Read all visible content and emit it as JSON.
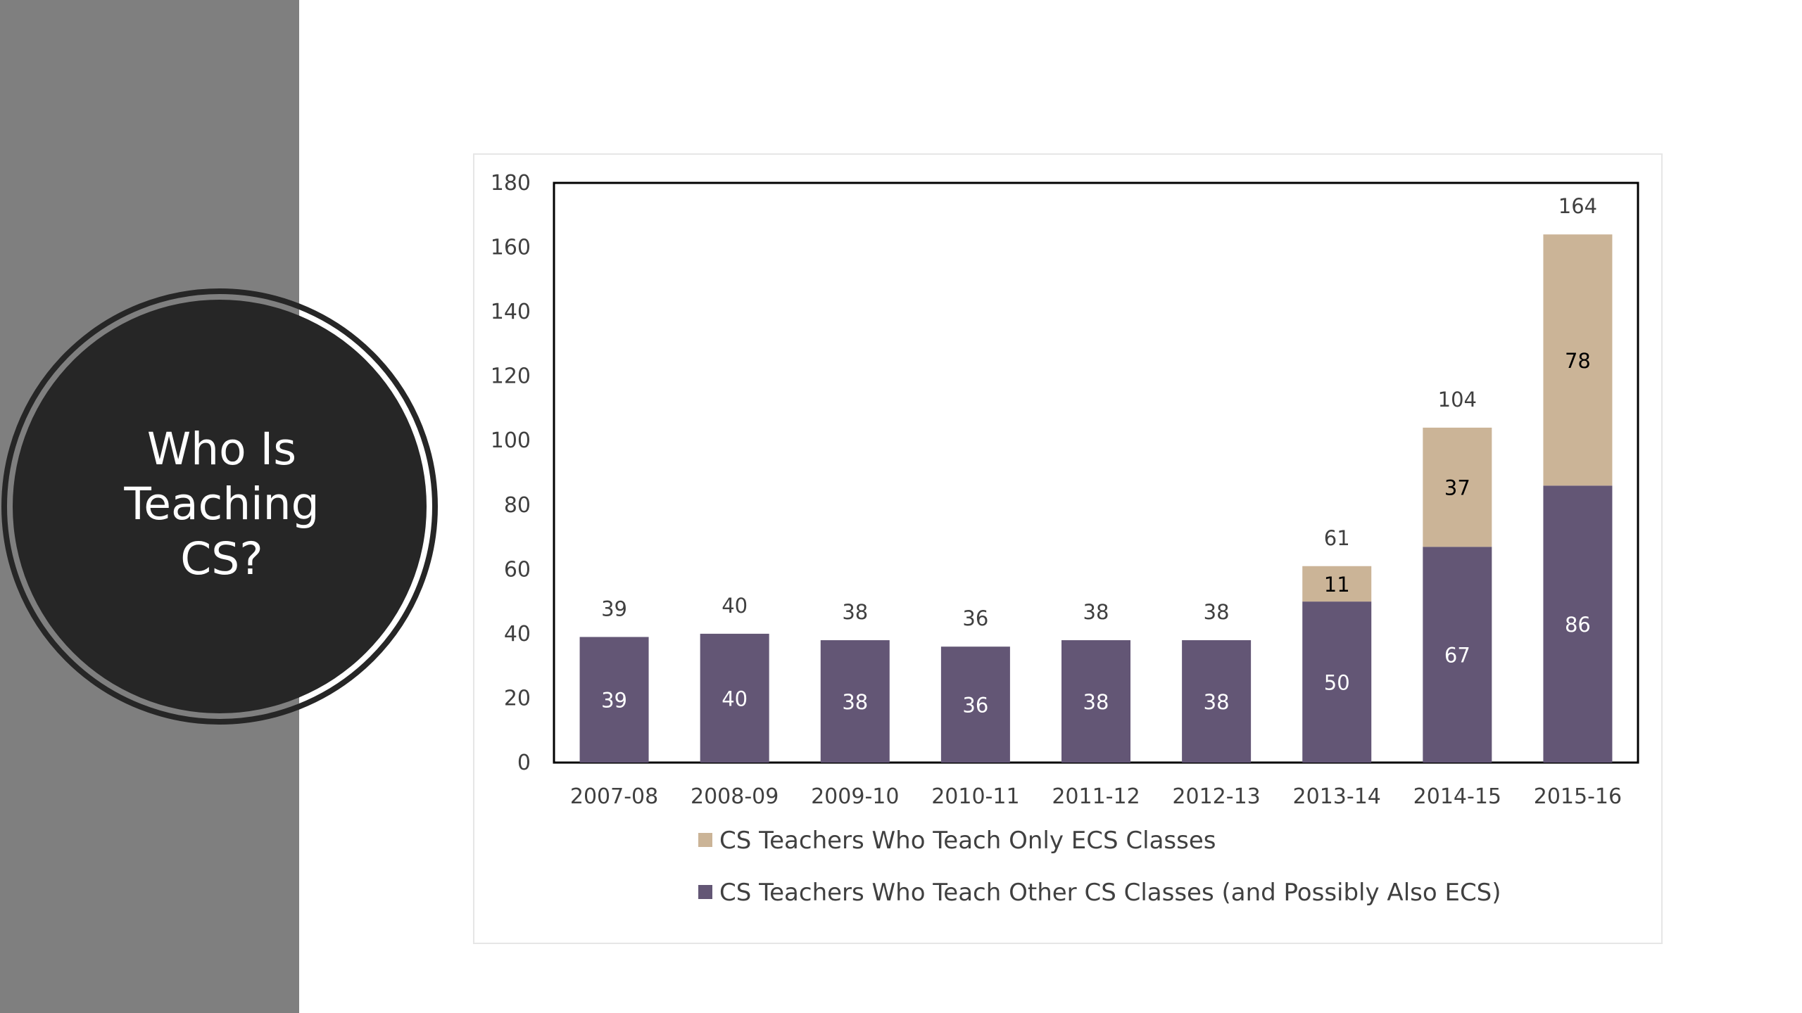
{
  "slide": {
    "title_lines": [
      "Who Is",
      "Teaching",
      "CS?"
    ],
    "panel_color": "#7f7f7f",
    "circle_color": "#262626"
  },
  "chart_data": {
    "type": "bar",
    "stacked": true,
    "title": "",
    "xlabel": "",
    "ylabel": "",
    "categories": [
      "2007-08",
      "2008-09",
      "2009-10",
      "2010-11",
      "2011-12",
      "2012-13",
      "2013-14",
      "2014-15",
      "2015-16"
    ],
    "series": [
      {
        "name": "CS Teachers Who Teach Other CS Classes (and Possibly Also ECS)",
        "color": "#635675",
        "label_color": "#ffffff",
        "values": [
          39,
          40,
          38,
          36,
          38,
          38,
          50,
          67,
          86
        ]
      },
      {
        "name": "CS Teachers Who Teach Only ECS Classes",
        "color": "#cbb497",
        "label_color": "#000000",
        "values": [
          0,
          0,
          0,
          0,
          0,
          0,
          11,
          37,
          78
        ]
      }
    ],
    "totals": [
      39,
      40,
      38,
      36,
      38,
      38,
      61,
      104,
      164
    ],
    "ylim": [
      0,
      180
    ],
    "yticks": [
      0,
      20,
      40,
      60,
      80,
      100,
      120,
      140,
      160,
      180
    ],
    "grid": false,
    "legend_position": "bottom",
    "legend_order": [
      1,
      0
    ]
  }
}
